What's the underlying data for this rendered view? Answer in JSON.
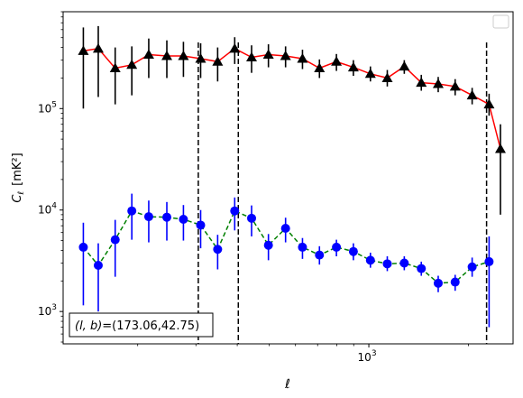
{
  "chart_data": {
    "type": "scatter",
    "title": "",
    "xlabel": "ℓ",
    "ylabel_main": "C",
    "ylabel_sub": "ℓ",
    "ylabel_unit": "[mK²]",
    "xscale": "log",
    "yscale": "log",
    "xlim": [
      119,
      2730
    ],
    "ylim": [
      480,
      900000
    ],
    "x_major_ticks": [
      {
        "value": 1000,
        "base": "10",
        "exp": "3"
      }
    ],
    "y_major_ticks": [
      {
        "value": 1000,
        "base": "10",
        "exp": "3"
      },
      {
        "value": 10000,
        "base": "10",
        "exp": "4"
      },
      {
        "value": 100000,
        "base": "10",
        "exp": "5"
      }
    ],
    "vlines": [
      305,
      403,
      2270
    ],
    "annotation": "(l, b)=(173.06,42.75)",
    "annotation_parts": {
      "lhs": "(l, b)",
      "rhs": "=(173.06,42.75)"
    },
    "legend": "upper right, empty",
    "series": [
      {
        "style": {
          "line": "#ff0000",
          "dash": "solid",
          "marker": "triangle",
          "marker_color": "#000000",
          "err_color": "#000000"
        },
        "points": [
          {
            "x": 137,
            "y": 370000,
            "lo": 100000,
            "hi": 630000
          },
          {
            "x": 152,
            "y": 390000,
            "lo": 130000,
            "hi": 650000
          },
          {
            "x": 171,
            "y": 250000,
            "lo": 110000,
            "hi": 400000
          },
          {
            "x": 192,
            "y": 270000,
            "lo": 135000,
            "hi": 410000
          },
          {
            "x": 216,
            "y": 340000,
            "lo": 200000,
            "hi": 490000
          },
          {
            "x": 245,
            "y": 330000,
            "lo": 200000,
            "hi": 470000
          },
          {
            "x": 275,
            "y": 330000,
            "lo": 205000,
            "hi": 455000
          },
          {
            "x": 310,
            "y": 310000,
            "lo": 200000,
            "hi": 440000
          },
          {
            "x": 349,
            "y": 290000,
            "lo": 185000,
            "hi": 400000
          },
          {
            "x": 393,
            "y": 390000,
            "lo": 275000,
            "hi": 505000
          },
          {
            "x": 442,
            "y": 320000,
            "lo": 225000,
            "hi": 420000
          },
          {
            "x": 497,
            "y": 340000,
            "lo": 255000,
            "hi": 430000
          },
          {
            "x": 560,
            "y": 330000,
            "lo": 255000,
            "hi": 410000
          },
          {
            "x": 630,
            "y": 310000,
            "lo": 245000,
            "hi": 380000
          },
          {
            "x": 709,
            "y": 250000,
            "lo": 200000,
            "hi": 305000
          },
          {
            "x": 798,
            "y": 290000,
            "lo": 235000,
            "hi": 345000
          },
          {
            "x": 898,
            "y": 255000,
            "lo": 210000,
            "hi": 300000
          },
          {
            "x": 1011,
            "y": 220000,
            "lo": 185000,
            "hi": 260000
          },
          {
            "x": 1137,
            "y": 200000,
            "lo": 165000,
            "hi": 240000
          },
          {
            "x": 1280,
            "y": 260000,
            "lo": 220000,
            "hi": 300000
          },
          {
            "x": 1441,
            "y": 180000,
            "lo": 150000,
            "hi": 215000
          },
          {
            "x": 1621,
            "y": 175000,
            "lo": 145000,
            "hi": 205000
          },
          {
            "x": 1824,
            "y": 165000,
            "lo": 135000,
            "hi": 195000
          },
          {
            "x": 2053,
            "y": 135000,
            "lo": 110000,
            "hi": 160000
          },
          {
            "x": 2310,
            "y": 110000,
            "lo": 85000,
            "hi": 140000
          },
          {
            "x": 2500,
            "y": 40000,
            "lo": 9000,
            "hi": 70000
          }
        ]
      },
      {
        "style": {
          "line": "#008000",
          "dash": "dashed",
          "marker": "circle",
          "marker_color": "#0000ff",
          "err_color": "#0000ff"
        },
        "points": [
          {
            "x": 137,
            "y": 4300,
            "lo": 1150,
            "hi": 7500
          },
          {
            "x": 152,
            "y": 2850,
            "lo": 1000,
            "hi": 4700
          },
          {
            "x": 171,
            "y": 5100,
            "lo": 2200,
            "hi": 8000
          },
          {
            "x": 192,
            "y": 9800,
            "lo": 5100,
            "hi": 14500
          },
          {
            "x": 216,
            "y": 8600,
            "lo": 4800,
            "hi": 12400
          },
          {
            "x": 245,
            "y": 8500,
            "lo": 5000,
            "hi": 12000
          },
          {
            "x": 275,
            "y": 8100,
            "lo": 5000,
            "hi": 11200
          },
          {
            "x": 310,
            "y": 7100,
            "lo": 4200,
            "hi": 10000
          },
          {
            "x": 349,
            "y": 4100,
            "lo": 2600,
            "hi": 5700
          },
          {
            "x": 393,
            "y": 9800,
            "lo": 6300,
            "hi": 13300
          },
          {
            "x": 442,
            "y": 8300,
            "lo": 5500,
            "hi": 11100
          },
          {
            "x": 497,
            "y": 4500,
            "lo": 3200,
            "hi": 5800
          },
          {
            "x": 560,
            "y": 6600,
            "lo": 4800,
            "hi": 8400
          },
          {
            "x": 630,
            "y": 4300,
            "lo": 3300,
            "hi": 5300
          },
          {
            "x": 709,
            "y": 3600,
            "lo": 2900,
            "hi": 4400
          },
          {
            "x": 798,
            "y": 4300,
            "lo": 3500,
            "hi": 5100
          },
          {
            "x": 898,
            "y": 3900,
            "lo": 3200,
            "hi": 4700
          },
          {
            "x": 1011,
            "y": 3200,
            "lo": 2700,
            "hi": 3800
          },
          {
            "x": 1137,
            "y": 2950,
            "lo": 2500,
            "hi": 3500
          },
          {
            "x": 1280,
            "y": 3000,
            "lo": 2550,
            "hi": 3500
          },
          {
            "x": 1441,
            "y": 2650,
            "lo": 2250,
            "hi": 3100
          },
          {
            "x": 1621,
            "y": 1900,
            "lo": 1550,
            "hi": 2250
          },
          {
            "x": 1824,
            "y": 1950,
            "lo": 1600,
            "hi": 2300
          },
          {
            "x": 2053,
            "y": 2750,
            "lo": 2200,
            "hi": 3400
          },
          {
            "x": 2310,
            "y": 3100,
            "lo": 700,
            "hi": 5500
          }
        ]
      }
    ]
  }
}
